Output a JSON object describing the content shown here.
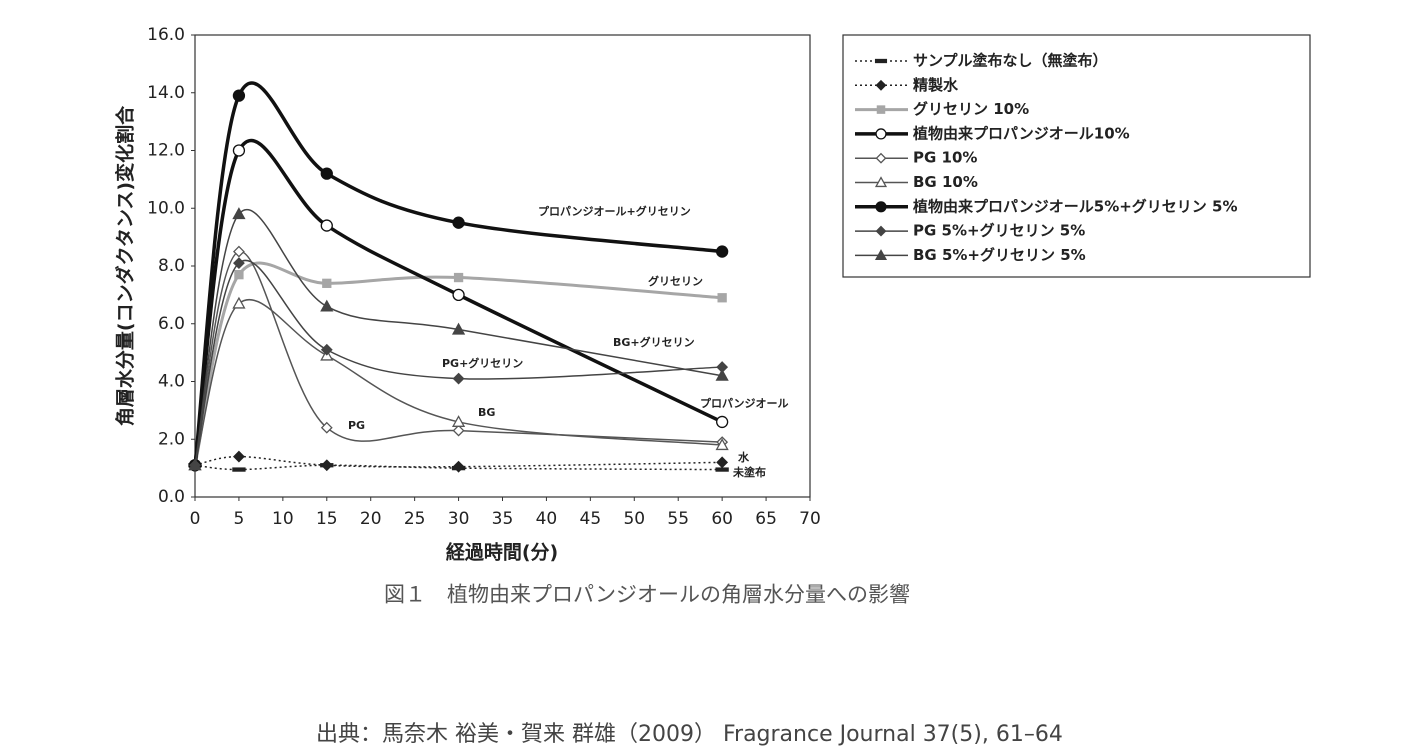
{
  "chart_data": {
    "type": "line",
    "ylabel": "角層水分量(コンダクタンス)変化割合",
    "xlabel": "経過時間(分)",
    "caption": "図１　植物由来プロパンジオールの角層水分量への影響",
    "source": "出典：馬奈木 裕美・賀来 群雄（2009） Fragrance Journal 37(5), 61–64",
    "x": [
      0,
      5,
      15,
      30,
      60
    ],
    "xlim": [
      0,
      70
    ],
    "xticks": [
      0,
      5,
      10,
      15,
      20,
      25,
      30,
      35,
      40,
      45,
      50,
      55,
      60,
      65,
      70
    ],
    "ylim": [
      0,
      16
    ],
    "yticks": [
      {
        "value": 0,
        "label": "0.0"
      },
      {
        "value": 2,
        "label": "2.0"
      },
      {
        "value": 4,
        "label": "4.0"
      },
      {
        "value": 6,
        "label": "6.0"
      },
      {
        "value": 8,
        "label": "8.0"
      },
      {
        "value": 10,
        "label": "10.0"
      },
      {
        "value": 12,
        "label": "12.0"
      },
      {
        "value": 14,
        "label": "14.0"
      },
      {
        "value": 16,
        "label": "16.0"
      }
    ],
    "series": [
      {
        "name": "サンプル塗布なし（無塗布）",
        "color": "#222222",
        "line_style": "dotted",
        "line_width": 1.5,
        "marker": "dash",
        "marker_fill": "filled",
        "values": [
          1.1,
          0.95,
          1.1,
          1.0,
          0.95
        ]
      },
      {
        "name": "精製水",
        "color": "#222222",
        "line_style": "dotted",
        "line_width": 1.5,
        "marker": "diamond",
        "marker_fill": "filled",
        "values": [
          1.1,
          1.4,
          1.1,
          1.05,
          1.2
        ]
      },
      {
        "name": "グリセリン 10%",
        "color": "#a6a6a6",
        "line_style": "solid",
        "line_width": 3,
        "marker": "square",
        "marker_fill": "filled",
        "values": [
          1.1,
          7.7,
          7.4,
          7.6,
          6.9
        ]
      },
      {
        "name": "植物由来プロパンジオール10%",
        "color": "#111111",
        "line_style": "solid",
        "line_width": 3.5,
        "marker": "circle",
        "marker_fill": "open",
        "values": [
          1.1,
          12.0,
          9.4,
          7.0,
          2.6
        ]
      },
      {
        "name": "PG 10%",
        "color": "#555555",
        "line_style": "solid",
        "line_width": 1.5,
        "marker": "diamond",
        "marker_fill": "open",
        "values": [
          1.1,
          8.5,
          2.4,
          2.3,
          1.9
        ]
      },
      {
        "name": "BG 10%",
        "color": "#555555",
        "line_style": "solid",
        "line_width": 1.5,
        "marker": "triangle",
        "marker_fill": "open",
        "values": [
          1.1,
          6.7,
          4.9,
          2.6,
          1.8
        ]
      },
      {
        "name": "植物由来プロパンジオール5%+グリセリン 5%",
        "color": "#111111",
        "line_style": "solid",
        "line_width": 3.5,
        "marker": "circle",
        "marker_fill": "filled",
        "values": [
          1.1,
          13.9,
          11.2,
          9.5,
          8.5
        ]
      },
      {
        "name": "PG 5%+グリセリン 5%",
        "color": "#444444",
        "line_style": "solid",
        "line_width": 1.5,
        "marker": "diamond",
        "marker_fill": "filled",
        "values": [
          1.1,
          8.1,
          5.1,
          4.1,
          4.5
        ]
      },
      {
        "name": "BG 5%+グリセリン 5%",
        "color": "#444444",
        "line_style": "solid",
        "line_width": 1.5,
        "marker": "triangle",
        "marker_fill": "filled",
        "values": [
          1.1,
          9.8,
          6.6,
          5.8,
          4.2
        ]
      }
    ],
    "annotations": [
      "プロパンジオール+グリセリン",
      "グリセリン",
      "BG+グリセリン",
      "PG+グリセリン",
      "PG",
      "BG",
      "プロパンジオール",
      "水",
      "未塗布"
    ]
  }
}
